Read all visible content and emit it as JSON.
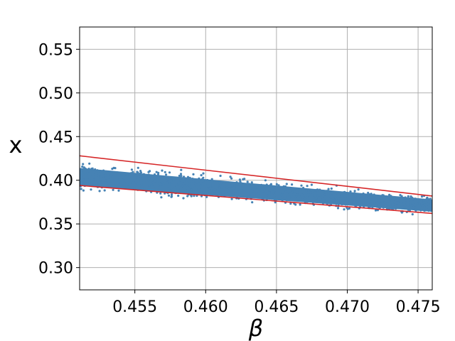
{
  "chart_data": {
    "type": "scatter",
    "title": "",
    "xlabel": "β",
    "ylabel": "x",
    "xlim": [
      0.4511,
      0.476
    ],
    "ylim": [
      0.2745,
      0.5755
    ],
    "xticks": [
      0.455,
      0.46,
      0.465,
      0.47,
      0.475
    ],
    "yticks": [
      0.3,
      0.35,
      0.4,
      0.45,
      0.5,
      0.55
    ],
    "xtick_labels": [
      "0.455",
      "0.460",
      "0.465",
      "0.470",
      "0.475"
    ],
    "ytick_labels": [
      "0.30",
      "0.35",
      "0.40",
      "0.45",
      "0.50",
      "0.55"
    ],
    "grid": true,
    "scatter_band": {
      "color": "#4682b4",
      "x_start": 0.4511,
      "x_end": 0.476,
      "center_start": 0.404,
      "center_end": 0.371,
      "halfwidth_start": 0.013,
      "halfwidth_end": 0.009
    },
    "bound_lines": [
      {
        "name": "",
        "color": "#d62728",
        "points": [
          [
            0.4511,
            0.428
          ],
          [
            0.476,
            0.382
          ]
        ]
      },
      {
        "name": "",
        "color": "#d62728",
        "points": [
          [
            0.4511,
            0.394
          ],
          [
            0.476,
            0.362
          ]
        ]
      }
    ],
    "colors": {
      "scatter": "#4682b4",
      "lines": "#d62728",
      "grid": "#b0b0b0"
    }
  }
}
